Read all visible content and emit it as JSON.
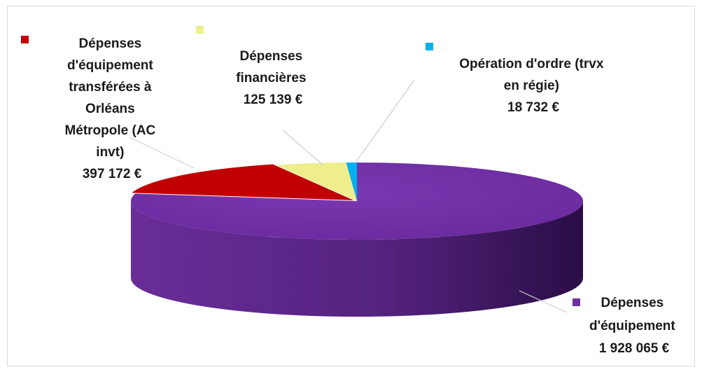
{
  "chart_data": {
    "type": "pie",
    "title": "",
    "slices": [
      {
        "label_lines": [
          "Dépenses",
          "d'équipement"
        ],
        "value_text": "1 928 065 €",
        "value": 1928065,
        "color": "#7030a0",
        "dark": "#3c1660"
      },
      {
        "label_lines": [
          "Dépenses",
          "d'équipement",
          "transférées à",
          "Orléans",
          "Métropole (AC",
          "invt)"
        ],
        "value_text": "397 172 €",
        "value": 397172,
        "color": "#c00000",
        "dark": "#700000"
      },
      {
        "label_lines": [
          "Dépenses",
          "financières"
        ],
        "value_text": "125 139 €",
        "value": 125139,
        "color": "#eeee8c",
        "dark": "#b8b85a"
      },
      {
        "label_lines": [
          "Opération d'ordre (trvx",
          "en régie)"
        ],
        "value_text": "18 732 €",
        "value": 18732,
        "color": "#00b0f0",
        "dark": "#0078a8"
      }
    ]
  }
}
